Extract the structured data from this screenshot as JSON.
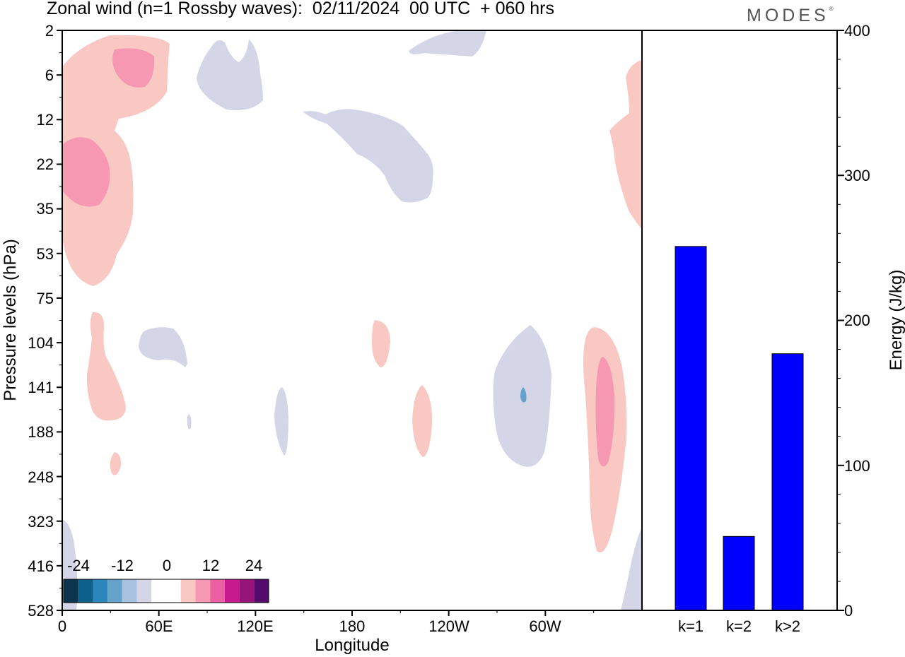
{
  "header": {
    "title": "Zonal wind (n=1 Rossby waves):  02/11/2024  00 UTC  + 060 hrs",
    "logo": "MODES",
    "logo_mark": "®"
  },
  "chart_data": [
    {
      "type": "heatmap",
      "title": "Zonal wind (n=1 Rossby waves):  02/11/2024  00 UTC  + 060 hrs",
      "xlabel": "Longitude",
      "ylabel": "Pressure levels (hPa)",
      "x_ticks": [
        "0",
        "60E",
        "120E",
        "180",
        "120W",
        "60W"
      ],
      "x_tick_degrees": [
        0,
        60,
        120,
        180,
        240,
        300
      ],
      "xlim_degrees": [
        0,
        360
      ],
      "y_ticks": [
        "2",
        "6",
        "12",
        "22",
        "35",
        "53",
        "75",
        "104",
        "141",
        "188",
        "248",
        "323",
        "416",
        "528"
      ],
      "y_scale": "pressure levels, equally spaced, top to bottom",
      "colorbar": {
        "labels": [
          "-24",
          "-12",
          "0",
          "12",
          "24"
        ],
        "colors": [
          "#0e3550",
          "#0d5f8c",
          "#2a86bd",
          "#65a3cc",
          "#a7c1de",
          "#d4d6e8",
          "#ffffff",
          "#ffffff",
          "#f9c8c3",
          "#f798b2",
          "#ec5fa2",
          "#c81a8f",
          "#97157a",
          "#550b6b"
        ]
      },
      "colors": {
        "negative_weak": "#d4d6e8",
        "negative_medium": "#65a3cc",
        "positive_weak": "#f9c8c3",
        "positive_medium": "#f798b2"
      }
    },
    {
      "type": "bar",
      "categories": [
        "k=1",
        "k=2",
        "k>2"
      ],
      "values": [
        251,
        51,
        177
      ],
      "ylabel": "Energy (J/kg)",
      "ylim": [
        0,
        400
      ],
      "y_ticks": [
        0,
        100,
        200,
        300,
        400
      ],
      "bar_color": "#0000ff"
    }
  ]
}
